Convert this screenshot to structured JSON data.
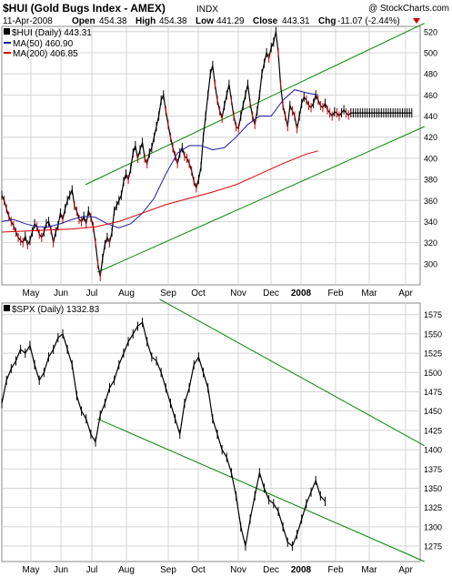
{
  "header": {
    "title": "$HUI (Gold Bugs Index - AMEX)",
    "exchange": "INDX",
    "copyright": "@ StockCharts.com",
    "date": "11-Apr-2008",
    "open_label": "Open",
    "open": "454.38",
    "high_label": "High",
    "high": "454.38",
    "low_label": "Low",
    "low": "441.29",
    "close_label": "Close",
    "close": "443.31",
    "chg_label": "Chg",
    "chg": "-11.07 (-2.44%)",
    "chg_arrow": "down-arrow-icon"
  },
  "colors": {
    "price": "#000000",
    "up_bar": "#000000",
    "down_bar": "#cc0000",
    "ma50": "#1a1aa6",
    "ma200": "#dd0000",
    "channel": "#008800",
    "grid": "#d4d4d4"
  },
  "chart_data": [
    {
      "type": "line",
      "title": "$HUI (Daily) 443.31",
      "legend": [
        "$HUI (Daily) 443.31",
        "MA(50) 460.90",
        "MA(200) 406.85"
      ],
      "legend_placement": "top-left",
      "ylim": [
        280,
        525
      ],
      "yticks": [
        300,
        320,
        340,
        360,
        380,
        400,
        420,
        440,
        460,
        480,
        500,
        520
      ],
      "x_tick_labels": [
        "May",
        "Jun",
        "Jul",
        "Aug",
        "Sep",
        "Oct",
        "Nov",
        "Dec",
        "2008",
        "Feb",
        "Mar",
        "Apr"
      ],
      "grid": true,
      "series": [
        {
          "name": "$HUI (Daily) 443.31",
          "x": [
            0,
            2,
            4,
            6,
            8,
            10,
            12,
            14,
            16,
            18,
            20,
            22,
            24,
            26,
            28,
            30,
            32,
            34,
            36,
            38,
            40,
            42,
            44,
            46,
            48,
            50,
            52,
            54,
            56,
            58,
            60,
            62,
            64,
            66,
            68,
            70,
            72,
            74,
            76,
            78,
            80,
            82,
            84,
            86,
            88,
            90,
            92,
            94,
            96,
            98,
            100,
            102,
            104,
            106,
            108,
            110,
            112,
            114,
            116,
            118,
            120,
            122,
            124,
            126,
            128,
            130,
            132,
            134,
            136,
            138,
            140,
            142,
            144,
            146,
            148,
            150,
            152,
            154,
            156,
            158,
            160,
            162,
            164,
            166,
            168,
            170,
            172,
            174,
            176,
            178,
            180,
            182,
            184,
            186,
            188,
            190,
            192,
            194,
            196,
            198,
            200,
            202,
            204,
            206,
            208,
            210,
            212,
            214,
            216,
            218,
            220,
            222,
            224,
            226,
            228,
            230,
            232,
            234,
            236,
            238,
            240,
            242,
            244,
            246,
            248,
            250,
            252,
            254,
            256,
            258,
            260,
            262,
            264,
            266,
            268,
            270,
            272,
            274,
            276,
            278,
            280,
            282,
            284,
            286,
            288,
            290,
            292,
            294,
            296,
            298,
            300,
            302,
            304,
            306,
            308,
            310,
            312,
            314,
            316,
            318,
            320,
            322,
            324,
            326,
            328,
            330,
            332,
            334,
            336,
            338,
            340,
            342,
            344,
            346,
            348,
            350
          ],
          "y": [
            365,
            360,
            352,
            345,
            340,
            336,
            330,
            325,
            322,
            320,
            326,
            318,
            322,
            330,
            338,
            335,
            328,
            325,
            330,
            338,
            340,
            332,
            320,
            330,
            336,
            348,
            342,
            352,
            360,
            365,
            370,
            355,
            350,
            342,
            340,
            345,
            338,
            350,
            344,
            335,
            320,
            300,
            288,
            305,
            318,
            325,
            320,
            330,
            350,
            355,
            360,
            365,
            378,
            385,
            380,
            390,
            405,
            412,
            400,
            408,
            415,
            400,
            395,
            405,
            410,
            420,
            430,
            440,
            455,
            460,
            445,
            432,
            420,
            410,
            402,
            395,
            405,
            410,
            402,
            400,
            395,
            388,
            378,
            372,
            380,
            392,
            420,
            440,
            460,
            480,
            488,
            470,
            455,
            445,
            438,
            450,
            460,
            470,
            455,
            440,
            430,
            428,
            440,
            450,
            460,
            470,
            452,
            440,
            432,
            445,
            460,
            480,
            490,
            500,
            495,
            505,
            510,
            520,
            500,
            470,
            450,
            440,
            430,
            450,
            445,
            440,
            428,
            440,
            452,
            458,
            455,
            450,
            448,
            452,
            460,
            455,
            450,
            448,
            452,
            446,
            443,
            440,
            444,
            443,
            440,
            443,
            446,
            443,
            441,
            443,
            443,
            443,
            443,
            443,
            443,
            443,
            443,
            443,
            443,
            443,
            443,
            443,
            443,
            443,
            443,
            443,
            443,
            443,
            443,
            443,
            443,
            443,
            443,
            443,
            443,
            443
          ]
        },
        {
          "name": "MA(50) 460.90",
          "x": [
            0,
            10,
            20,
            30,
            40,
            50,
            60,
            70,
            80,
            90,
            100,
            110,
            120,
            130,
            140,
            150,
            160,
            170,
            180,
            190,
            200,
            210,
            220,
            230,
            240,
            250,
            260,
            270
          ],
          "y": [
            340,
            342,
            338,
            335,
            335,
            338,
            342,
            345,
            344,
            338,
            334,
            338,
            348,
            362,
            385,
            405,
            412,
            412,
            408,
            410,
            420,
            432,
            440,
            440,
            455,
            465,
            462,
            460
          ]
        },
        {
          "name": "MA(200) 406.85",
          "x": [
            0,
            20,
            40,
            60,
            80,
            100,
            120,
            140,
            160,
            180,
            200,
            220,
            240,
            260,
            270
          ],
          "y": [
            330,
            331,
            332,
            333,
            335,
            340,
            348,
            356,
            362,
            368,
            375,
            385,
            395,
            404,
            407
          ]
        }
      ],
      "channel_lines": [
        {
          "start": [
            "Apr-2007",
            375
          ],
          "end": [
            "Apr-2008",
            528
          ]
        },
        {
          "start": [
            "Jul-2007",
            292
          ],
          "end": [
            "Apr-2008",
            430
          ]
        }
      ]
    },
    {
      "type": "line",
      "title": "$SPX (Daily) 1332.83",
      "legend": [
        "$SPX (Daily) 1332.83"
      ],
      "legend_placement": "top-left",
      "ylim": [
        1255,
        1590
      ],
      "yticks": [
        1275,
        1300,
        1325,
        1350,
        1375,
        1400,
        1425,
        1450,
        1475,
        1500,
        1525,
        1550,
        1575
      ],
      "x_tick_labels": [
        "May",
        "Jun",
        "Jul",
        "Aug",
        "Sep",
        "Oct",
        "Nov",
        "Dec",
        "2008",
        "Feb",
        "Mar",
        "Apr"
      ],
      "grid": true,
      "series": [
        {
          "name": "$SPX (Daily) 1332.83",
          "x": [
            0,
            4,
            8,
            12,
            16,
            20,
            24,
            28,
            32,
            36,
            40,
            44,
            48,
            52,
            56,
            60,
            64,
            68,
            72,
            76,
            80,
            84,
            88,
            92,
            96,
            100,
            104,
            108,
            112,
            116,
            120,
            124,
            128,
            132,
            136,
            140,
            144,
            148,
            152,
            156,
            160,
            164,
            168,
            172,
            176,
            180,
            184,
            188,
            192,
            196,
            200,
            204,
            208,
            212,
            216,
            220,
            224,
            228,
            232,
            236,
            240,
            244,
            248,
            252,
            256,
            260,
            264,
            268,
            272,
            276
          ],
          "y": [
            1460,
            1490,
            1505,
            1515,
            1530,
            1525,
            1535,
            1510,
            1490,
            1500,
            1520,
            1530,
            1545,
            1550,
            1530,
            1510,
            1470,
            1450,
            1440,
            1420,
            1410,
            1445,
            1460,
            1480,
            1490,
            1510,
            1525,
            1540,
            1550,
            1560,
            1565,
            1540,
            1520,
            1515,
            1500,
            1480,
            1460,
            1440,
            1420,
            1460,
            1480,
            1510,
            1520,
            1500,
            1480,
            1440,
            1420,
            1400,
            1390,
            1370,
            1340,
            1300,
            1275,
            1310,
            1340,
            1370,
            1350,
            1335,
            1330,
            1320,
            1300,
            1280,
            1275,
            1290,
            1310,
            1330,
            1345,
            1360,
            1340,
            1333
          ]
        }
      ],
      "channel_lines": [
        {
          "start": [
            "Sep-2007",
            1595
          ],
          "end": [
            "Apr-2008",
            1405
          ]
        },
        {
          "start": [
            "Jul-2007",
            1440
          ],
          "end": [
            "Apr-2008",
            1255
          ]
        }
      ]
    }
  ]
}
